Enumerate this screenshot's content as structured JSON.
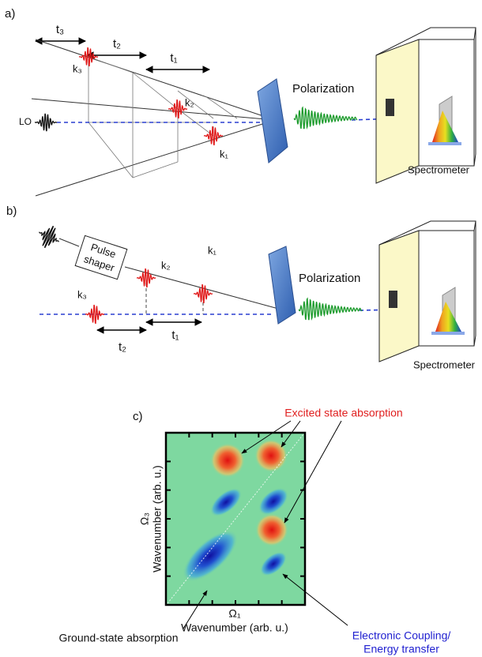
{
  "panel_a": {
    "label": "a)",
    "delays": [
      "t₃",
      "t₂",
      "t₁"
    ],
    "wavevectors": [
      "k₃",
      "k₂",
      "k₁"
    ],
    "local_oscillator": "LO",
    "signal": "Polarization",
    "detector": "Spectrometer"
  },
  "panel_b": {
    "label": "b)",
    "pulse_shaper": [
      "Pulse",
      "shaper"
    ],
    "wavevectors": [
      "k₂",
      "k₁",
      "k₃"
    ],
    "delays": [
      "t₂",
      "t₁"
    ],
    "signal": "Polarization",
    "detector": "Spectrometer"
  },
  "panel_c": {
    "label": "c)",
    "annotation_top": "Excited state absorption",
    "y_axis": [
      "Ω₃",
      "Wavenumber (arb. u.)"
    ],
    "x_axis": [
      "Ω₁",
      "Wavenumber (arb. u.)"
    ],
    "annotation_left": "Ground-state absorption",
    "annotation_right": [
      "Electronic Coupling/",
      "Energy transfer"
    ]
  }
}
